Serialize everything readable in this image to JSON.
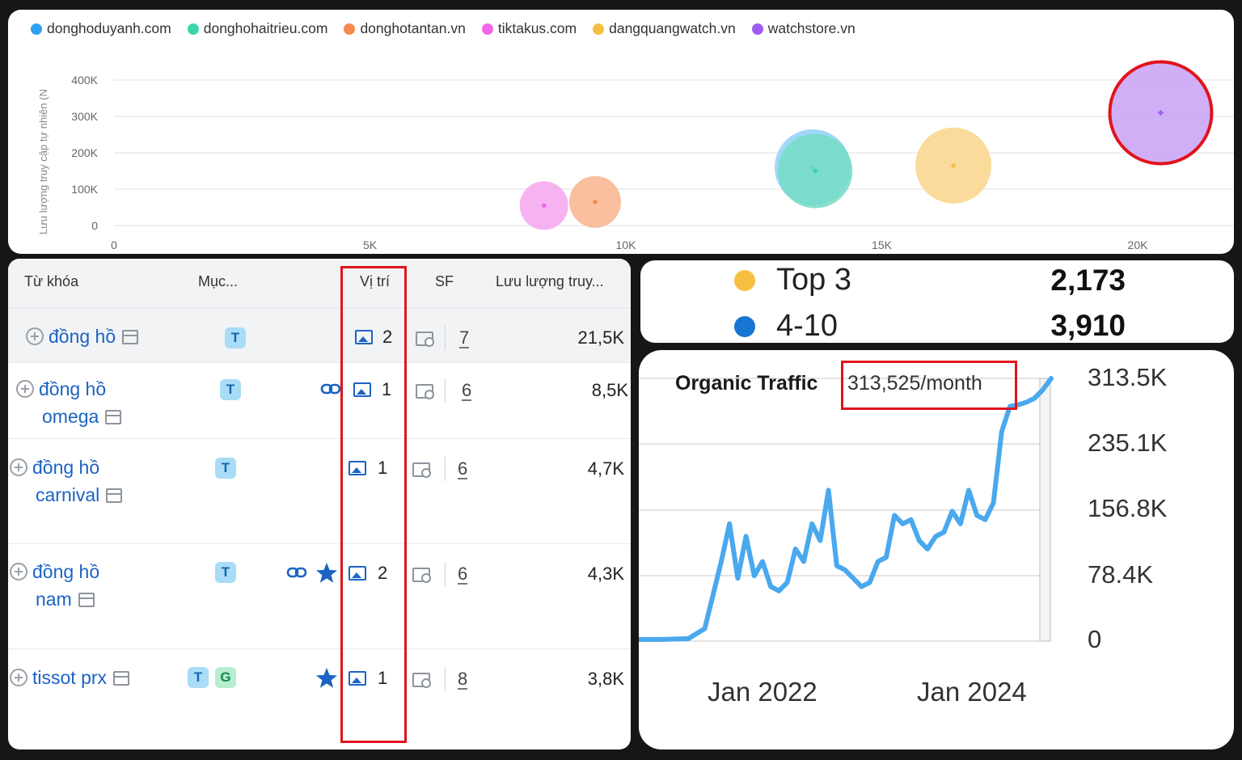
{
  "bubble_chart": {
    "legend": [
      {
        "name": "donghoduyanh.com",
        "color": "#2f9ff0"
      },
      {
        "name": "donghohaitrieu.com",
        "color": "#3bd6a8"
      },
      {
        "name": "donghotantan.vn",
        "color": "#f48a52"
      },
      {
        "name": "tiktakus.com",
        "color": "#f066e8"
      },
      {
        "name": "dangquangwatch.vn",
        "color": "#f6bf40"
      },
      {
        "name": "watchstore.vn",
        "color": "#a05cf0"
      }
    ],
    "ylabel": "Lưu lượng truy cập tự nhiên (N",
    "y_ticks": [
      "400K",
      "300K",
      "200K",
      "100K",
      "0"
    ],
    "x_ticks": [
      "0",
      "5K",
      "10K",
      "15K",
      "20K"
    ]
  },
  "chart_data": [
    {
      "type": "scatter",
      "ylabel": "Lưu lượng truy cập tự nhiên (N",
      "xlim": [
        0,
        22000
      ],
      "ylim": [
        0,
        400000
      ],
      "series": [
        {
          "name": "donghoduyanh.com",
          "color": "#8fd1f8",
          "x": 13650,
          "y": 160000,
          "size": 47
        },
        {
          "name": "donghohaitrieu.com",
          "color": "#74dcc4",
          "x": 13700,
          "y": 150000,
          "size": 46
        },
        {
          "name": "donghotantan.vn",
          "color": "#f9b48d",
          "x": 9400,
          "y": 65000,
          "size": 32
        },
        {
          "name": "tiktakus.com",
          "color": "#f6a6ef",
          "x": 8400,
          "y": 55000,
          "size": 30
        },
        {
          "name": "dangquangwatch.vn",
          "color": "#f9d58a",
          "x": 16400,
          "y": 165000,
          "size": 47
        },
        {
          "name": "watchstore.vn",
          "color": "#c9a1f4",
          "x": 20450,
          "y": 310000,
          "size": 63
        }
      ]
    },
    {
      "type": "line",
      "title": "Organic Traffic",
      "y_ticks": [
        "313.5K",
        "235.1K",
        "156.8K",
        "78.4K",
        "0"
      ],
      "x_ticks": [
        "Jan 2022",
        "Jan 2024"
      ],
      "ylim": [
        0,
        313500
      ],
      "series": [
        {
          "color": "#4aa8ee",
          "x": [
            "2020-06",
            "2020-09",
            "2020-12",
            "2021-02",
            "2021-03",
            "2021-04",
            "2021-05",
            "2021-06",
            "2021-07",
            "2021-08",
            "2021-09",
            "2021-10",
            "2021-11",
            "2021-12",
            "2022-01",
            "2022-02",
            "2022-03",
            "2022-04",
            "2022-05",
            "2022-06",
            "2022-07",
            "2022-08",
            "2022-09",
            "2022-10",
            "2022-11",
            "2022-12",
            "2023-01",
            "2023-02",
            "2023-03",
            "2023-04",
            "2023-05",
            "2023-06",
            "2023-07",
            "2023-08",
            "2023-09",
            "2023-10",
            "2023-11",
            "2023-12",
            "2024-01",
            "2024-02",
            "2024-03",
            "2024-04",
            "2024-05",
            "2024-06",
            "2024-07",
            "2024-08"
          ],
          "y": [
            2000,
            2000,
            3000,
            15000,
            55000,
            95000,
            140000,
            75000,
            125000,
            78000,
            95000,
            65000,
            60000,
            70000,
            110000,
            95000,
            140000,
            120000,
            180000,
            90000,
            85000,
            75000,
            65000,
            70000,
            95000,
            100000,
            150000,
            140000,
            145000,
            120000,
            110000,
            125000,
            130000,
            155000,
            140000,
            180000,
            150000,
            145000,
            165000,
            250000,
            280000,
            282000,
            285000,
            290000,
            300000,
            313525
          ]
        }
      ]
    }
  ],
  "table": {
    "headers": {
      "keyword": "Từ khóa",
      "intent": "Mục...",
      "position": "Vị trí",
      "sf": "SF",
      "traffic": "Lưu lượng truy..."
    },
    "rows": [
      {
        "kw_line1": "đồng hồ",
        "kw_line2": "",
        "badges": [
          "T"
        ],
        "position": "2",
        "sf": "7",
        "traffic": "21,5K"
      },
      {
        "kw_line1": "đồng hồ",
        "kw_line2": "omega",
        "badges": [
          "T"
        ],
        "position": "1",
        "sf": "6",
        "traffic": "8,5K"
      },
      {
        "kw_line1": "đồng hồ",
        "kw_line2": "carnival",
        "badges": [
          "T"
        ],
        "position": "1",
        "sf": "6",
        "traffic": "4,7K"
      },
      {
        "kw_line1": "đồng hồ",
        "kw_line2": "nam",
        "badges": [
          "T"
        ],
        "position": "2",
        "sf": "6",
        "traffic": "4,3K"
      },
      {
        "kw_line1": "tissot prx",
        "kw_line2": "",
        "badges": [
          "T",
          "G"
        ],
        "position": "1",
        "sf": "8",
        "traffic": "3,8K"
      }
    ]
  },
  "ranks": [
    {
      "label": "Top 3",
      "value": "2,173",
      "color": "#f6bf40"
    },
    {
      "label": "4-10",
      "value": "3,910",
      "color": "#1676d2"
    }
  ],
  "organic": {
    "title": "Organic Traffic",
    "value": "313,525/month",
    "y_ticks": [
      "313.5K",
      "235.1K",
      "156.8K",
      "78.4K",
      "0"
    ],
    "x_ticks": [
      "Jan 2022",
      "Jan 2024"
    ]
  }
}
